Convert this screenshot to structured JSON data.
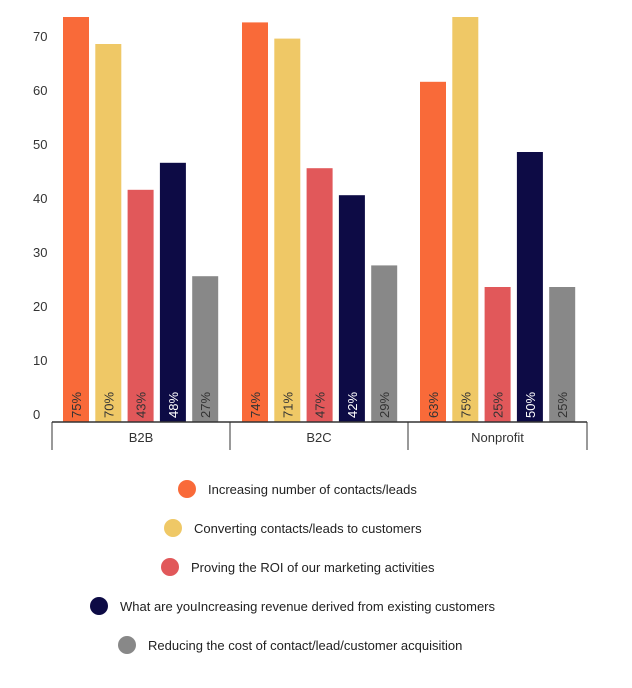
{
  "chart_data": {
    "type": "bar",
    "categories": [
      "B2B",
      "B2C",
      "Nonprofit"
    ],
    "series": [
      {
        "name": "Increasing number of contacts/leads",
        "color": "#F96A39",
        "values": [
          75,
          74,
          63
        ],
        "labels": [
          "75%",
          "74%",
          "63%"
        ]
      },
      {
        "name": "Converting contacts/leads to customers",
        "color": "#EFC866",
        "values": [
          70,
          71,
          75
        ],
        "labels": [
          "70%",
          "71%",
          "75%"
        ]
      },
      {
        "name": "Proving the ROI of our marketing activities",
        "color": "#E1585A",
        "values": [
          43,
          47,
          25
        ],
        "labels": [
          "43%",
          "47%",
          "25%"
        ]
      },
      {
        "name": "What are youIncreasing revenue derived from existing customers",
        "color": "#0D0B45",
        "values": [
          48,
          42,
          50
        ],
        "labels": [
          "48%",
          "42%",
          "50%"
        ]
      },
      {
        "name": "Reducing the cost of contact/lead/customer acquisition",
        "color": "#888888",
        "values": [
          27,
          29,
          25
        ],
        "labels": [
          "27%",
          "29%",
          "25%"
        ]
      }
    ],
    "y_ticks": [
      "0",
      "10",
      "20",
      "30",
      "40",
      "50",
      "60",
      "70"
    ],
    "ylim": [
      0,
      75
    ],
    "grid": false,
    "legend_position": "bottom",
    "title": "",
    "xlabel": "",
    "ylabel": ""
  }
}
